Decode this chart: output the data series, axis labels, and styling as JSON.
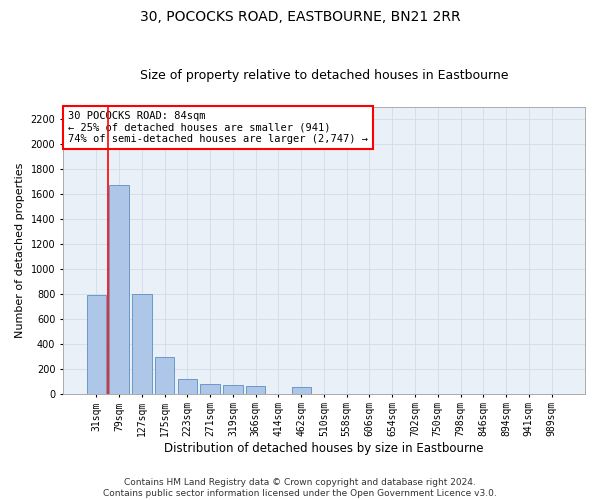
{
  "title": "30, POCOCKS ROAD, EASTBOURNE, BN21 2RR",
  "subtitle": "Size of property relative to detached houses in Eastbourne",
  "xlabel": "Distribution of detached houses by size in Eastbourne",
  "ylabel": "Number of detached properties",
  "categories": [
    "31sqm",
    "79sqm",
    "127sqm",
    "175sqm",
    "223sqm",
    "271sqm",
    "319sqm",
    "366sqm",
    "414sqm",
    "462sqm",
    "510sqm",
    "558sqm",
    "606sqm",
    "654sqm",
    "702sqm",
    "750sqm",
    "798sqm",
    "846sqm",
    "894sqm",
    "941sqm",
    "989sqm"
  ],
  "values": [
    790,
    1670,
    800,
    290,
    120,
    75,
    65,
    60,
    0,
    55,
    0,
    0,
    0,
    0,
    0,
    0,
    0,
    0,
    0,
    0,
    0
  ],
  "bar_color": "#aec6e8",
  "bar_edge_color": "#5a8fc2",
  "grid_color": "#d0dce8",
  "background_color": "#eaf0f8",
  "annotation_box_text": "30 POCOCKS ROAD: 84sqm\n← 25% of detached houses are smaller (941)\n74% of semi-detached houses are larger (2,747) →",
  "vline_x": 0.5,
  "ylim": [
    0,
    2300
  ],
  "yticks": [
    0,
    200,
    400,
    600,
    800,
    1000,
    1200,
    1400,
    1600,
    1800,
    2000,
    2200
  ],
  "footer_text": "Contains HM Land Registry data © Crown copyright and database right 2024.\nContains public sector information licensed under the Open Government Licence v3.0.",
  "title_fontsize": 10,
  "subtitle_fontsize": 9,
  "xlabel_fontsize": 8.5,
  "ylabel_fontsize": 8,
  "tick_fontsize": 7,
  "annotation_fontsize": 7.5,
  "footer_fontsize": 6.5
}
